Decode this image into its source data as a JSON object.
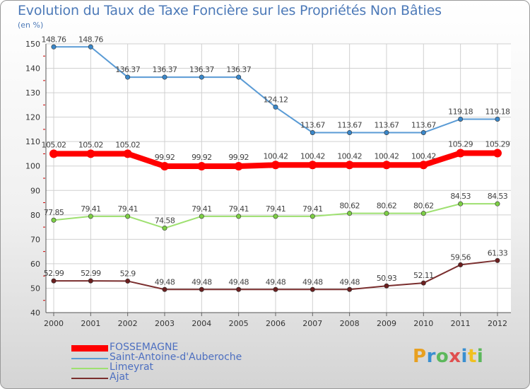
{
  "chart_data": {
    "type": "line",
    "title": "Evolution du Taux de Taxe Foncière sur les Propriétés Non Bâties",
    "ylabel": "(en %)",
    "xlabel": "",
    "categories": [
      "2000",
      "2001",
      "2002",
      "2003",
      "2004",
      "2005",
      "2006",
      "2007",
      "2008",
      "2009",
      "2010",
      "2011",
      "2012"
    ],
    "ylim": [
      40,
      150
    ],
    "yticks": [
      "40",
      "50",
      "60",
      "70",
      "80",
      "90",
      "100",
      "110",
      "120",
      "130",
      "140",
      "150"
    ],
    "grid": true,
    "legend_position": "bottom-left",
    "series": [
      {
        "name": "Saint-Antoine-d'Auberoche",
        "color": "#5a9bd5",
        "point_color": "#3a87c9",
        "values": [
          148.76,
          148.76,
          136.37,
          136.37,
          136.37,
          136.37,
          124.12,
          113.67,
          113.67,
          113.67,
          113.67,
          119.18,
          119.18
        ],
        "labels": [
          "148.76",
          "148.76",
          "136.37",
          "136.37",
          "136.37",
          "136.37",
          "124.12",
          "113.67",
          "113.67",
          "113.67",
          "113.67",
          "119.18",
          "119.18"
        ]
      },
      {
        "name": "FOSSEMAGNE",
        "color": "#ff0000",
        "point_color": "#ff0000",
        "values": [
          105.02,
          105.02,
          105.02,
          99.92,
          99.92,
          99.92,
          100.42,
          100.42,
          100.42,
          100.42,
          100.42,
          105.29,
          105.29
        ],
        "labels": [
          "105.02",
          "105.02",
          "105.02",
          "99.92",
          "99.92",
          "99.92",
          "100.42",
          "100.42",
          "100.42",
          "100.42",
          "100.42",
          "105.29",
          "105.29"
        ]
      },
      {
        "name": "Limeyrat",
        "color": "#9ee070",
        "point_color": "#7dcf45",
        "values": [
          77.85,
          79.41,
          79.41,
          74.58,
          79.41,
          79.41,
          79.41,
          79.41,
          80.62,
          80.62,
          80.62,
          84.53,
          84.53
        ],
        "labels": [
          "77.85",
          "79.41",
          "79.41",
          "74.58",
          "79.41",
          "79.41",
          "79.41",
          "79.41",
          "80.62",
          "80.62",
          "80.62",
          "84.53",
          "84.53"
        ]
      },
      {
        "name": "Ajat",
        "color": "#7a2e2e",
        "point_color": "#6b1f1f",
        "values": [
          52.99,
          52.99,
          52.9,
          49.48,
          49.48,
          49.48,
          49.48,
          49.48,
          49.48,
          50.93,
          52.11,
          59.56,
          61.33
        ],
        "labels": [
          "52.99",
          "52.99",
          "52.9",
          "49.48",
          "49.48",
          "49.48",
          "49.48",
          "49.48",
          "49.48",
          "50.93",
          "52.11",
          "59.56",
          "61.33"
        ]
      }
    ]
  },
  "legend": [
    {
      "label": "FOSSEMAGNE",
      "color": "#ff0000",
      "thick": true
    },
    {
      "label": "Saint-Antoine-d'Auberoche",
      "color": "#5a9bd5",
      "thick": false
    },
    {
      "label": "Limeyrat",
      "color": "#9ee070",
      "thick": false
    },
    {
      "label": "Ajat",
      "color": "#7a2e2e",
      "thick": false
    }
  ],
  "logo": {
    "text": "Proxiti",
    "colors": [
      "#e8a020",
      "#3a8fd0",
      "#5cb85c",
      "#e05050",
      "#3a8fd0",
      "#f0c020",
      "#5cb85c"
    ]
  }
}
